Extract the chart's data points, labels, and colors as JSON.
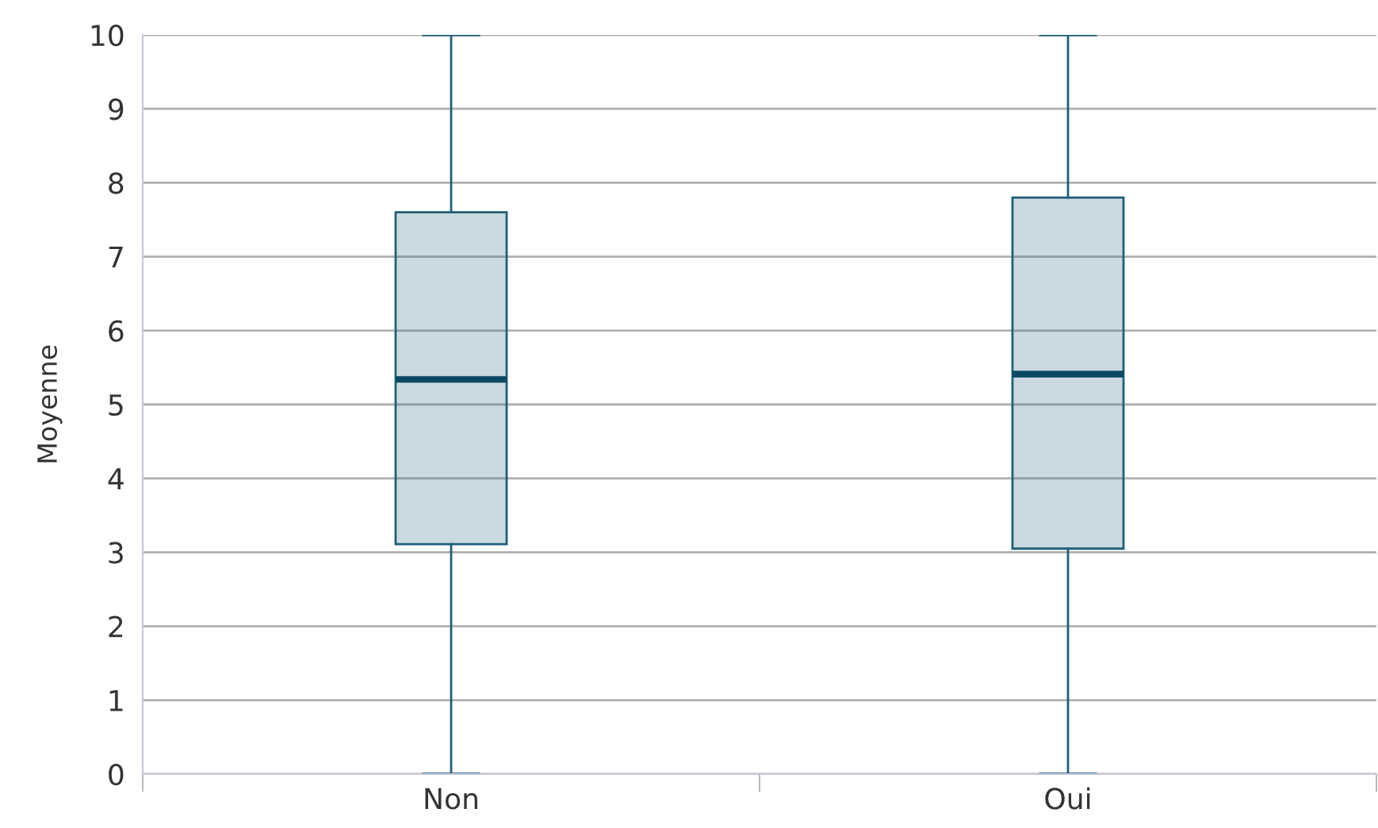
{
  "chart_data": {
    "type": "box",
    "ylabel": "Moyenne",
    "categories": [
      "Non",
      "Oui"
    ],
    "boxes": [
      {
        "low": 0,
        "q1": 3.11,
        "median": 5.34,
        "q3": 7.6,
        "high": 10
      },
      {
        "low": 0,
        "q1": 3.05,
        "median": 5.41,
        "q3": 7.8,
        "high": 10
      }
    ],
    "color": "#1f5f7a",
    "ylim": [
      0,
      10
    ],
    "yticks": [
      0,
      1,
      2,
      3,
      4,
      5,
      6,
      7,
      8,
      9,
      10
    ],
    "grid": "y"
  }
}
